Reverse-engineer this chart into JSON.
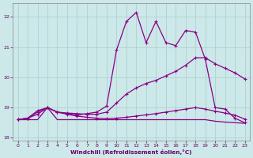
{
  "xlabel": "Windchill (Refroidissement éolien,°C)",
  "bg_color": "#cce8e8",
  "grid_color": "#aacece",
  "line_color": "#880088",
  "xlim": [
    -0.5,
    23.5
  ],
  "ylim": [
    17.9,
    22.45
  ],
  "xticks": [
    0,
    1,
    2,
    3,
    4,
    5,
    6,
    7,
    8,
    9,
    10,
    11,
    12,
    13,
    14,
    15,
    16,
    17,
    18,
    19,
    20,
    21,
    22,
    23
  ],
  "yticks": [
    18,
    19,
    20,
    21,
    22
  ],
  "line1_x": [
    0,
    1,
    2,
    3,
    4,
    5,
    6,
    7,
    8,
    9,
    10,
    11,
    12,
    13,
    14,
    15,
    16,
    17,
    18,
    19,
    20,
    21,
    22,
    23
  ],
  "line1_y": [
    18.6,
    18.65,
    18.9,
    19.0,
    18.85,
    18.8,
    18.75,
    18.8,
    18.85,
    19.05,
    20.9,
    21.85,
    22.15,
    21.15,
    21.85,
    21.15,
    21.05,
    21.55,
    21.5,
    20.6,
    19.0,
    18.95,
    18.65,
    18.5
  ],
  "line2_x": [
    0,
    1,
    2,
    3,
    4,
    5,
    6,
    7,
    8,
    9,
    10,
    11,
    12,
    13,
    14,
    15,
    16,
    17,
    18,
    19,
    20,
    21,
    22,
    23
  ],
  "line2_y": [
    18.6,
    18.65,
    18.85,
    19.0,
    18.85,
    18.82,
    18.8,
    18.78,
    18.78,
    18.85,
    19.15,
    19.45,
    19.65,
    19.8,
    19.9,
    20.05,
    20.2,
    20.4,
    20.65,
    20.65,
    20.45,
    20.3,
    20.15,
    19.95
  ],
  "line3_x": [
    0,
    1,
    2,
    3,
    4,
    5,
    6,
    7,
    8,
    9,
    10,
    11,
    12,
    13,
    14,
    15,
    16,
    17,
    18,
    19,
    20,
    21,
    22,
    23
  ],
  "line3_y": [
    18.6,
    18.65,
    18.78,
    19.0,
    18.85,
    18.78,
    18.72,
    18.68,
    18.65,
    18.63,
    18.65,
    18.68,
    18.72,
    18.76,
    18.8,
    18.85,
    18.9,
    18.95,
    19.0,
    18.95,
    18.88,
    18.82,
    18.75,
    18.62
  ],
  "line4_x": [
    0,
    1,
    2,
    3,
    4,
    5,
    6,
    7,
    8,
    9,
    10,
    11,
    12,
    13,
    14,
    15,
    16,
    17,
    18,
    19,
    20,
    21,
    22,
    23
  ],
  "line4_y": [
    18.6,
    18.6,
    18.6,
    19.0,
    18.6,
    18.6,
    18.6,
    18.6,
    18.6,
    18.6,
    18.6,
    18.6,
    18.6,
    18.6,
    18.6,
    18.6,
    18.6,
    18.6,
    18.6,
    18.6,
    18.55,
    18.52,
    18.5,
    18.48
  ]
}
